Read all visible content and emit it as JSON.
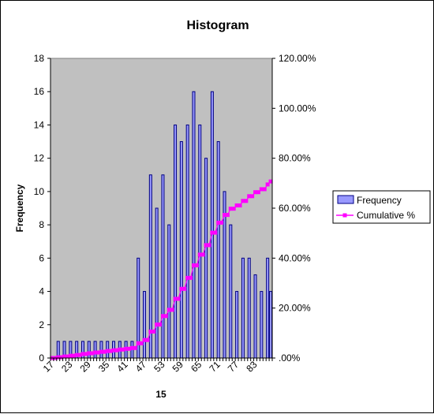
{
  "chart_data": {
    "type": "bar",
    "title": "Histogram",
    "xlabel": "15",
    "ylabel": "Frequency",
    "x_tick_labels": [
      "17",
      "23",
      "29",
      "35",
      "41",
      "47",
      "53",
      "59",
      "65",
      "71",
      "77",
      "83"
    ],
    "categories": [
      17,
      18,
      19,
      20,
      21,
      22,
      23,
      24,
      25,
      26,
      27,
      28,
      29,
      30,
      31,
      32,
      33,
      34,
      35,
      36,
      37,
      38,
      39,
      40,
      41,
      42,
      43,
      44,
      45,
      46,
      47,
      48,
      49,
      50,
      51,
      52,
      53,
      54,
      55,
      56,
      57,
      58,
      59,
      60,
      61,
      62,
      63,
      64,
      65,
      66,
      67,
      68,
      69,
      70,
      71,
      72,
      73,
      74,
      75,
      76,
      77,
      78,
      79,
      80,
      81,
      82,
      83,
      84,
      85,
      86,
      87,
      88
    ],
    "y_left": {
      "ylim": [
        0,
        18
      ],
      "ticks": [
        "0",
        "2",
        "4",
        "6",
        "8",
        "10",
        "12",
        "14",
        "16",
        "18"
      ]
    },
    "y_right": {
      "ylim": [
        0,
        120
      ],
      "ticks": [
        ".00%",
        "20.00%",
        "40.00%",
        "60.00%",
        "80.00%",
        "100.00%",
        "120.00%"
      ]
    },
    "series": [
      {
        "name": "Frequency",
        "axis": "left",
        "type": "bar",
        "color": "#9999ff",
        "edge": "#000080",
        "values": [
          0,
          0,
          1,
          0,
          1,
          0,
          1,
          0,
          1,
          0,
          1,
          0,
          1,
          0,
          1,
          0,
          1,
          0,
          1,
          0,
          1,
          0,
          1,
          0,
          1,
          0,
          1,
          0,
          6,
          0,
          4,
          0,
          11,
          0,
          9,
          0,
          11,
          0,
          8,
          0,
          14,
          0,
          13,
          0,
          14,
          0,
          16,
          0,
          14,
          0,
          12,
          0,
          16,
          0,
          13,
          0,
          10,
          0,
          8,
          0,
          4,
          0,
          6,
          0,
          6,
          0,
          5,
          0,
          4,
          0,
          6,
          4
        ]
      },
      {
        "name": "Cumulative %",
        "axis": "right",
        "type": "line",
        "color": "#ff00ff",
        "values": [
          0,
          0,
          0.3,
          0.3,
          0.6,
          0.6,
          0.9,
          0.9,
          1.2,
          1.2,
          1.6,
          1.6,
          1.9,
          1.9,
          2.2,
          2.2,
          2.5,
          2.5,
          2.8,
          2.8,
          3.1,
          3.1,
          3.4,
          3.4,
          3.7,
          3.7,
          4.0,
          4.0,
          5.9,
          5.9,
          7.2,
          7.2,
          10.6,
          10.6,
          13.4,
          13.4,
          16.8,
          16.8,
          19.3,
          19.3,
          23.7,
          23.7,
          27.7,
          27.7,
          32.1,
          32.1,
          37.1,
          37.1,
          41.4,
          41.4,
          45.2,
          45.2,
          50.2,
          50.2,
          54.2,
          54.2,
          57.3,
          57.3,
          59.8,
          59.8,
          61.1,
          61.1,
          62.9,
          62.9,
          64.8,
          64.8,
          66.4,
          66.4,
          67.6,
          67.6,
          69.5,
          70.7
        ]
      }
    ],
    "legend": {
      "placement": "right",
      "entries": [
        "Frequency",
        "Cumulative %"
      ]
    },
    "plot_background": "#c0c0c0",
    "grid": false
  }
}
